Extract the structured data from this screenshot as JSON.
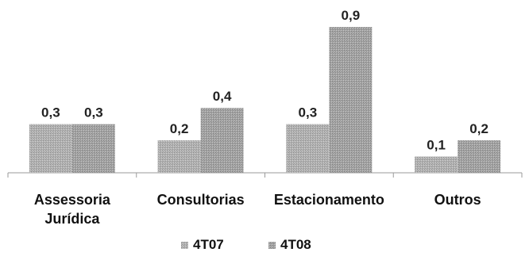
{
  "chart_data": {
    "type": "bar",
    "categories": [
      [
        "Assessoria",
        "Jurídica"
      ],
      [
        "Consultorias"
      ],
      [
        "Estacionamento"
      ],
      [
        "Outros"
      ]
    ],
    "series": [
      {
        "name": "4T07",
        "values": [
          "0,3",
          "0,2",
          "0,3",
          "0,1"
        ],
        "numeric": [
          0.3,
          0.2,
          0.3,
          0.1
        ],
        "color": "#a8a8a8"
      },
      {
        "name": "4T08",
        "values": [
          "0,3",
          "0,4",
          "0,9",
          "0,2"
        ],
        "numeric": [
          0.3,
          0.4,
          0.9,
          0.2
        ],
        "color": "#9a9a9a"
      }
    ],
    "ylim": [
      0,
      1.0
    ],
    "grid": false,
    "legend": "bottom"
  }
}
